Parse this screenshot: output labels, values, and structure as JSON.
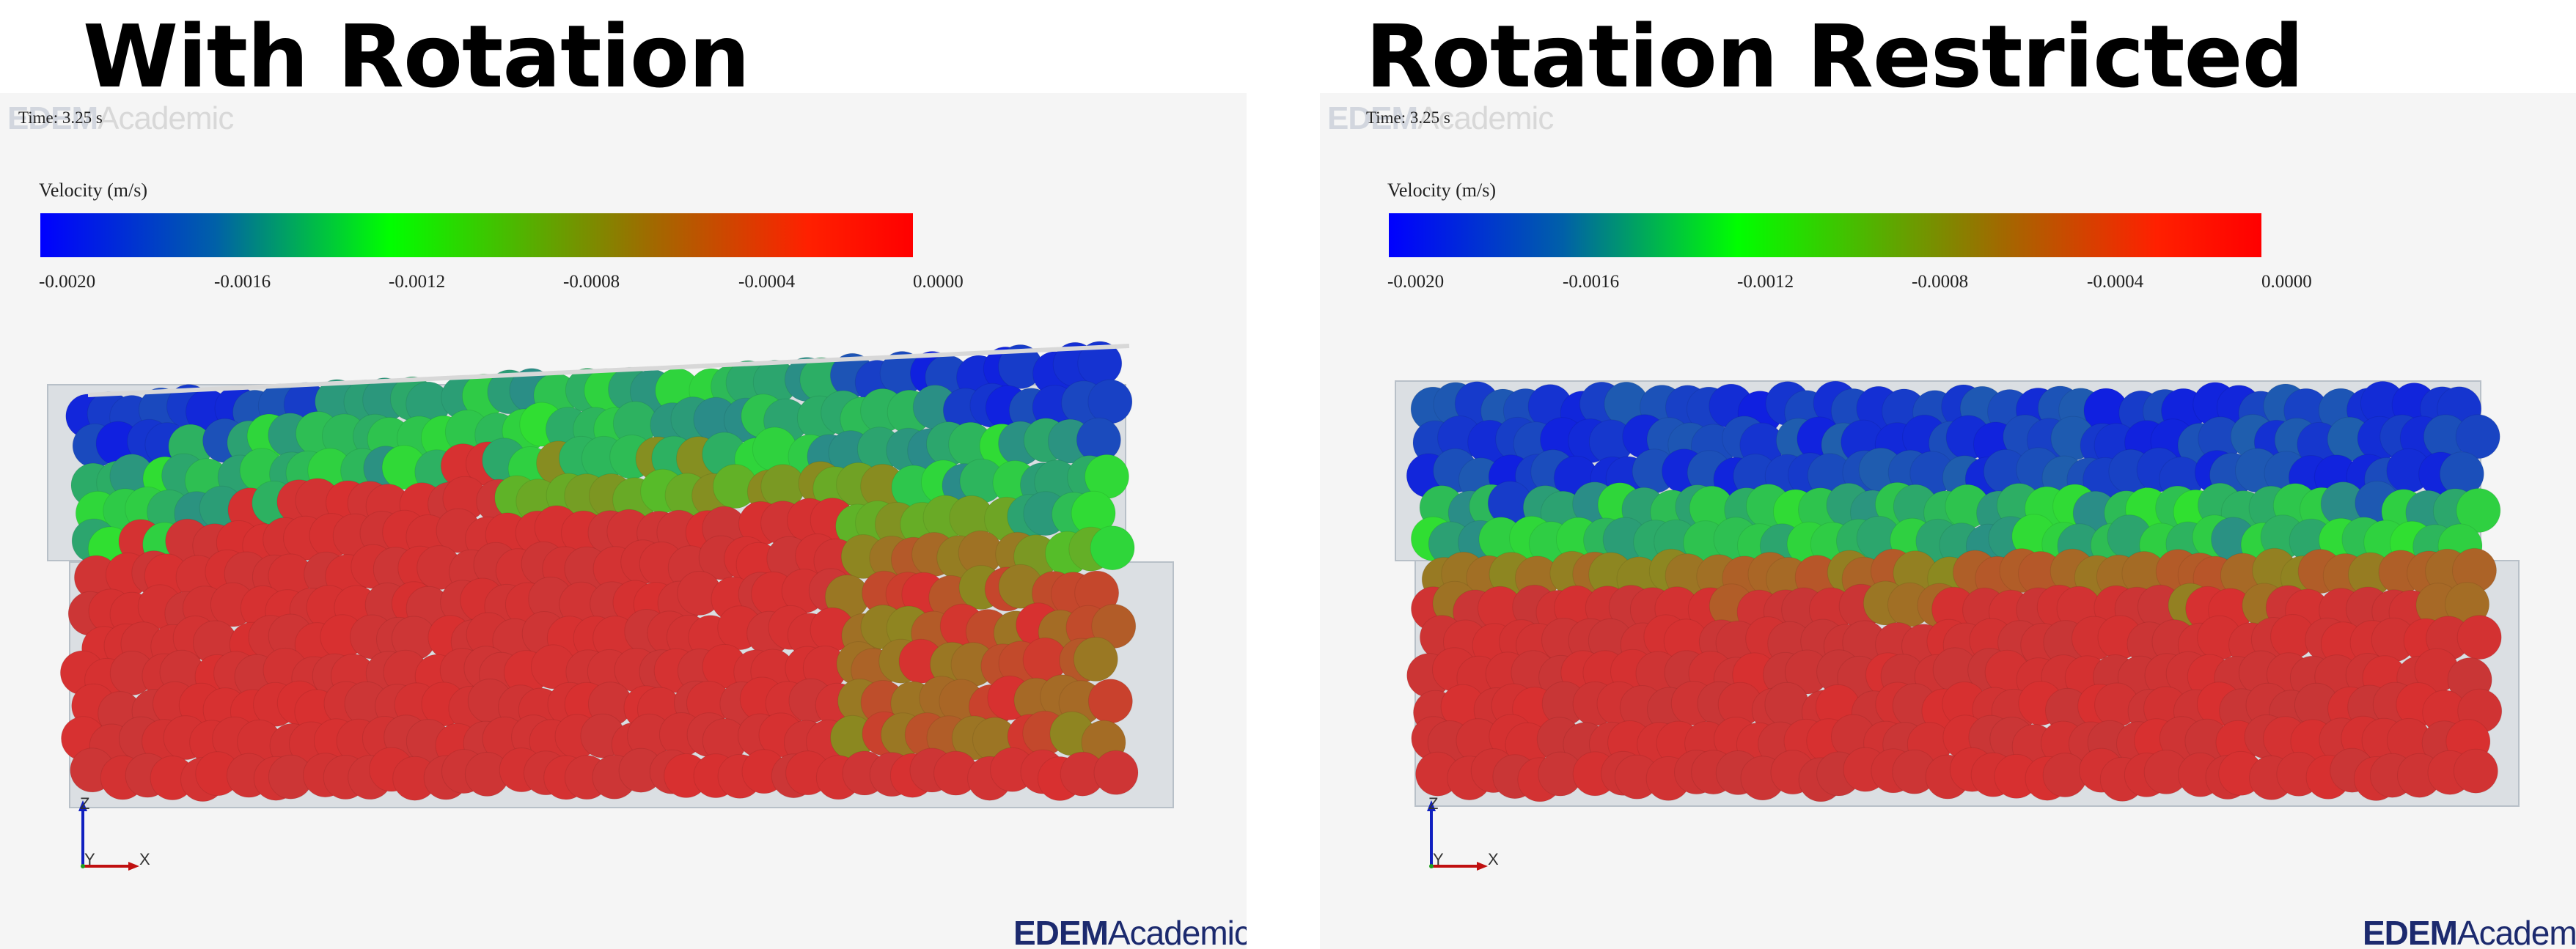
{
  "panels": [
    {
      "title": "With Rotation",
      "watermark": {
        "brand": "EDEM",
        "suffix": "Academic"
      },
      "time_label": "Time: 3.25 s",
      "legend": {
        "title": "Velocity (m/s)",
        "ticks": [
          "-0.0020",
          "-0.0016",
          "-0.0012",
          "-0.0008",
          "-0.0004",
          "0.0000"
        ]
      },
      "axes": {
        "z": "Z",
        "y": "Y",
        "x": "X"
      },
      "logo": {
        "brand": "EDEM",
        "suffix": "Academic",
        "tm": "™"
      }
    },
    {
      "title": "Rotation Restricted",
      "watermark": {
        "brand": "EDEM",
        "suffix": "Academic"
      },
      "time_label": "Time: 3.25 s",
      "legend": {
        "title": "Velocity (m/s)",
        "ticks": [
          "-0.0020",
          "-0.0016",
          "-0.0012",
          "-0.0008",
          "-0.0004",
          "0.0000"
        ]
      },
      "axes": {
        "z": "Z",
        "y": "Y",
        "x": "X"
      },
      "logo": {
        "brand": "EDEM",
        "suffix": "Academic",
        "tm": ""
      }
    }
  ],
  "colors": {
    "fast_blue": "#1020e0",
    "mid_green": "#30e030",
    "slow_red": "#d83030",
    "olive": "#8a8a20",
    "teal": "#2a8a8a",
    "panel_bg": "#f5f5f5",
    "box_gray": "#c4ccd4"
  },
  "icons": [
    "axis-triad-icon"
  ]
}
